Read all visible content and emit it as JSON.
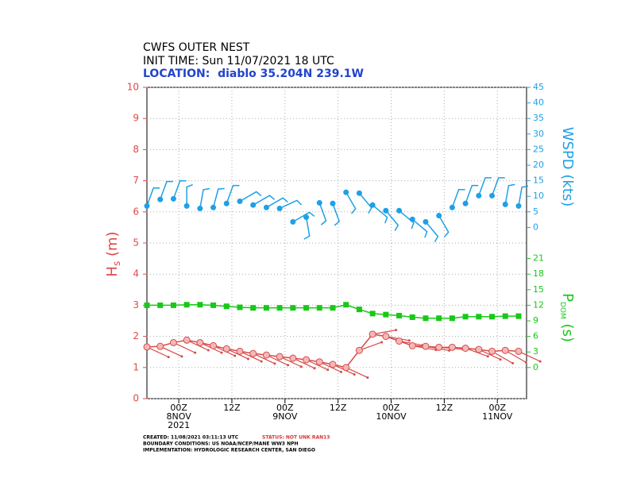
{
  "chart_data": {
    "type": "line",
    "title": "CWFS OUTER NEST",
    "subtitle": "INIT TIME: Sun 11/07/2021 18 UTC",
    "location": "LOCATION:  diablo 35.204N 239.1W",
    "ylabel": {
      "main": "H",
      "sub": "s",
      "unit": " (m)"
    },
    "y2label": "WSPD (kts)",
    "y3label": {
      "main": "P",
      "sub": "DOM",
      "unit": " (s)"
    },
    "xlim": [
      0,
      28.6
    ],
    "xticks": [
      {
        "value": 2.4,
        "label": "00Z 8NOV 2021"
      },
      {
        "value": 6.4,
        "label": "12Z"
      },
      {
        "value": 10.4,
        "label": "00Z 9NOV"
      },
      {
        "value": 14.4,
        "label": "12Z"
      },
      {
        "value": 18.4,
        "label": "00Z 10NOV"
      },
      {
        "value": 22.4,
        "label": "12Z"
      },
      {
        "value": 26.4,
        "label": "00Z 11NOV"
      }
    ],
    "ylim": [
      0,
      10
    ],
    "yticks": [
      0,
      1,
      2,
      3,
      4,
      5,
      6,
      7,
      8,
      9,
      10
    ],
    "y2lim": [
      -55,
      45
    ],
    "y2ticks": [
      0,
      5,
      10,
      15,
      20,
      25,
      30,
      35,
      40,
      45
    ],
    "y3lim": [
      -6,
      54
    ],
    "y3ticks": [
      0,
      3,
      6,
      9,
      12,
      15,
      18,
      21
    ],
    "grid": true,
    "series": [
      {
        "axis": "y",
        "color": "#d84a4a",
        "values": [
          1.66,
          1.68,
          1.8,
          1.88,
          1.8,
          1.7,
          1.6,
          1.52,
          1.45,
          1.4,
          1.35,
          1.3,
          1.25,
          1.18,
          1.1,
          1.0,
          1.55,
          2.07,
          2.0,
          1.85,
          1.7,
          1.68,
          1.65,
          1.65,
          1.62,
          1.58,
          1.52,
          1.55,
          1.52
        ],
        "direction": [
          115,
          115,
          115,
          115,
          115,
          115,
          115,
          115,
          115,
          115,
          115,
          115,
          115,
          115,
          115,
          115,
          70,
          80,
          100,
          100,
          100,
          100,
          95,
          95,
          110,
          115,
          120,
          120,
          115
        ]
      },
      {
        "axis": "y2",
        "color": "#1ea0e6",
        "values": [
          6.9,
          9.0,
          9.2,
          6.9,
          6.1,
          6.4,
          7.7,
          8.4,
          7.2,
          6.4,
          6.1,
          1.8,
          3.3,
          7.9,
          7.7,
          11.3,
          11.0,
          7.2,
          5.4,
          5.4,
          2.6,
          1.8,
          3.8,
          6.4,
          7.7,
          10.2,
          10.2,
          7.4,
          6.9
        ],
        "direction": [
          20,
          20,
          20,
          0,
          10,
          15,
          20,
          60,
          60,
          60,
          65,
          60,
          170,
          160,
          160,
          150,
          140,
          130,
          140,
          130,
          130,
          140,
          150,
          20,
          20,
          20,
          20,
          10,
          10
        ]
      },
      {
        "axis": "y3",
        "color": "#18c818",
        "values": [
          12.0,
          12.0,
          12.0,
          12.1,
          12.1,
          12.0,
          11.8,
          11.6,
          11.5,
          11.5,
          11.5,
          11.5,
          11.5,
          11.5,
          11.5,
          12.1,
          11.2,
          10.4,
          10.2,
          10.0,
          9.7,
          9.5,
          9.5,
          9.5,
          9.8,
          9.8,
          9.8,
          9.9,
          9.9
        ]
      }
    ],
    "footer": {
      "created": "CREATED: 11/08/2021 03:11:13 UTC",
      "status": "STATUS: NOT UNK RAN13",
      "boundary": "BOUNDARY CONDITIONS: US NOAA/NCEP/MANE WW3 NPH",
      "implementation": "IMPLEMENTATION: HYDROLOGIC RESEARCH CENTER, SAN DIEGO"
    }
  }
}
